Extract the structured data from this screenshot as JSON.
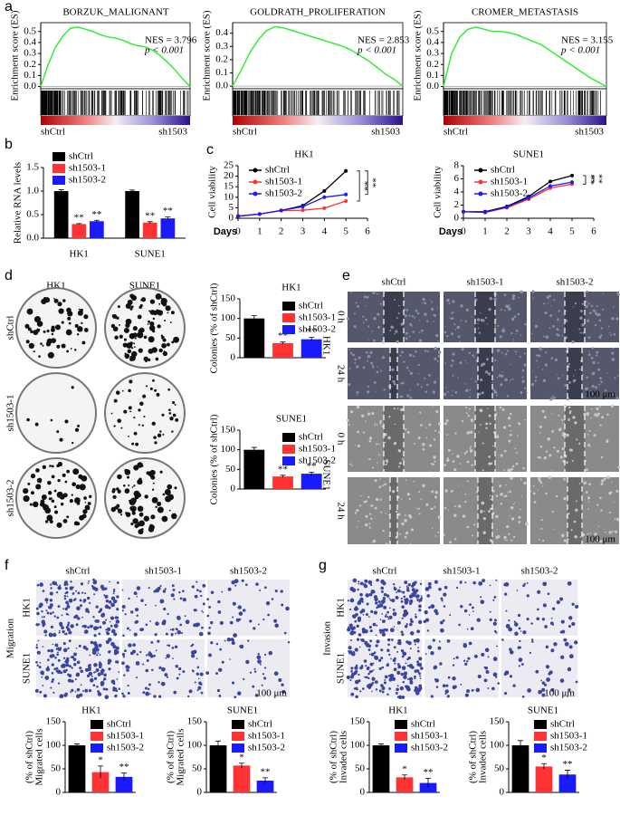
{
  "chart_data": [
    {
      "type": "line",
      "panel": "a",
      "title": "BORZUK_MALIGNANT",
      "ylabel": "Enrichment score (ES)",
      "color": "#33ee33",
      "x": [
        0,
        5,
        10,
        15,
        20,
        25,
        30,
        35,
        40,
        45,
        50,
        55,
        60,
        65,
        70,
        75,
        80,
        85,
        90,
        95,
        100
      ],
      "xlim": [
        0,
        100
      ],
      "values": [
        0,
        0.2,
        0.36,
        0.46,
        0.53,
        0.54,
        0.52,
        0.5,
        0.47,
        0.45,
        0.44,
        0.42,
        0.39,
        0.37,
        0.36,
        0.33,
        0.28,
        0.22,
        0.15,
        0.07,
        0
      ],
      "ylim": [
        -0.02,
        0.58
      ],
      "yticks": [
        {
          "value": 0,
          "label": "0.0"
        },
        0.1,
        0.2,
        0.3,
        0.4,
        0.5
      ],
      "nes": "NES = 3.796",
      "p": "p < 0.001",
      "left_label": "shCtrl",
      "right_label": "sh1503"
    },
    {
      "type": "line",
      "title": "GOLDRATH_PROLIFERATION",
      "ylabel": "Enrichment score (ES)",
      "color": "#33ee33",
      "x": [
        0,
        5,
        10,
        15,
        20,
        25,
        30,
        35,
        40,
        45,
        50,
        55,
        60,
        65,
        70,
        75,
        80,
        85,
        90,
        95,
        100
      ],
      "xlim": [
        0,
        100
      ],
      "values": [
        0,
        0.12,
        0.25,
        0.35,
        0.42,
        0.45,
        0.44,
        0.42,
        0.4,
        0.38,
        0.36,
        0.34,
        0.32,
        0.3,
        0.27,
        0.23,
        0.19,
        0.14,
        0.09,
        0.05,
        0
      ],
      "ylim": [
        -0.02,
        0.48
      ],
      "yticks": [
        {
          "value": 0,
          "label": "0.0"
        },
        0.1,
        0.2,
        0.3,
        0.4
      ],
      "nes": "NES = 2.853",
      "p": "p < 0.001",
      "left_label": "shCtrl",
      "right_label": "sh1503"
    },
    {
      "type": "line",
      "title": "CROMER_METASTASIS",
      "ylabel": "Enrichment score (ES)",
      "color": "#33ee33",
      "x": [
        0,
        5,
        10,
        15,
        20,
        25,
        30,
        35,
        40,
        45,
        50,
        55,
        60,
        65,
        70,
        75,
        80,
        85,
        90,
        95,
        100
      ],
      "xlim": [
        0,
        100
      ],
      "values": [
        0,
        0.3,
        0.45,
        0.52,
        0.54,
        0.52,
        0.5,
        0.5,
        0.49,
        0.47,
        0.44,
        0.41,
        0.38,
        0.33,
        0.28,
        0.23,
        0.18,
        0.13,
        0.08,
        0.04,
        0
      ],
      "ylim": [
        -0.02,
        0.58
      ],
      "yticks": [
        {
          "value": 0,
          "label": "0.0"
        },
        0.1,
        0.2,
        0.3,
        0.4,
        0.5
      ],
      "nes": "NES = 3.155",
      "p": "p < 0.001",
      "left_label": "shCtrl",
      "right_label": "sh1503"
    },
    {
      "type": "bar",
      "panel": "b",
      "ylabel": "Relative RNA levels",
      "categories": [
        "HK1",
        "SUNE1"
      ],
      "ylim": [
        0,
        1.5
      ],
      "yticks": [
        {
          "value": 0,
          "label": "0.0"
        },
        0.5,
        {
          "value": 1,
          "label": "1.0"
        },
        1.5
      ],
      "series": [
        {
          "name": "shCtrl",
          "color": "#000000",
          "values": [
            1.0,
            1.0
          ],
          "errors": [
            0.03,
            0.02
          ]
        },
        {
          "name": "sh1503-1",
          "color": "#ff3333",
          "values": [
            0.3,
            0.33
          ],
          "errors": [
            0.01,
            0.02
          ],
          "sig": [
            "**",
            "**"
          ]
        },
        {
          "name": "sh1503-2",
          "color": "#1a1aff",
          "values": [
            0.36,
            0.42
          ],
          "errors": [
            0.02,
            0.03
          ],
          "sig": [
            "**",
            "**"
          ]
        }
      ]
    },
    {
      "type": "line",
      "panel": "c",
      "title": "HK1",
      "ylabel": "Cell viability",
      "xlabel": "Days",
      "x": [
        0,
        1,
        2,
        3,
        4,
        5
      ],
      "xlim": [
        0,
        6
      ],
      "xticks": [
        0,
        1,
        2,
        3,
        4,
        5,
        6
      ],
      "ylim": [
        0,
        25
      ],
      "yticks": [
        0,
        5,
        10,
        15,
        20,
        25
      ],
      "series": [
        {
          "name": "shCtrl",
          "color": "#000000",
          "values": [
            1,
            2,
            3.7,
            6,
            13,
            22.5
          ]
        },
        {
          "name": "sh1503-1",
          "color": "#ff3333",
          "values": [
            1,
            2,
            3.6,
            3.8,
            4.8,
            8.2
          ],
          "sig": "**"
        },
        {
          "name": "sh1503-2",
          "color": "#1a1aff",
          "values": [
            1,
            2,
            3.7,
            5.5,
            10,
            11.3
          ],
          "sig": "**"
        }
      ]
    },
    {
      "type": "line",
      "title": "SUNE1",
      "ylabel": "Cell viability",
      "xlabel": "Days",
      "x": [
        0,
        1,
        2,
        3,
        4,
        5
      ],
      "xlim": [
        0,
        6
      ],
      "xticks": [
        0,
        1,
        2,
        3,
        4,
        5,
        6
      ],
      "ylim": [
        0,
        8
      ],
      "yticks": [
        0,
        2,
        4,
        6,
        8
      ],
      "series": [
        {
          "name": "shCtrl",
          "color": "#000000",
          "values": [
            1,
            1,
            1.8,
            3.3,
            5.6,
            6.5
          ]
        },
        {
          "name": "sh1503-1",
          "color": "#ff3333",
          "values": [
            1,
            0.9,
            1.6,
            2.9,
            4.6,
            5.2
          ],
          "sig": "**"
        },
        {
          "name": "sh1503-2",
          "color": "#1a1aff",
          "values": [
            1,
            0.9,
            1.7,
            3.1,
            4.9,
            5.5
          ],
          "sig": "**"
        }
      ]
    },
    {
      "type": "bar",
      "title": "HK1",
      "ylabel": [
        "Colonies (% of shCtrl)"
      ],
      "ylim": [
        0,
        150
      ],
      "yticks": [
        0,
        50,
        100,
        150
      ],
      "series": [
        {
          "name": "shCtrl",
          "color": "#000000",
          "values": [
            100
          ],
          "errors": [
            7
          ]
        },
        {
          "name": "sh1503-1",
          "color": "#ff3333",
          "values": [
            37
          ],
          "errors": [
            3
          ],
          "sig": [
            "**"
          ]
        },
        {
          "name": "sh1503-2",
          "color": "#1a1aff",
          "values": [
            47
          ],
          "errors": [
            5
          ],
          "sig": [
            "**"
          ]
        }
      ]
    },
    {
      "type": "bar",
      "title": "SUNE1",
      "ylabel": [
        "Colonies (% of shCtrl)"
      ],
      "ylim": [
        0,
        150
      ],
      "yticks": [
        0,
        50,
        100,
        150
      ],
      "series": [
        {
          "name": "shCtrl",
          "color": "#000000",
          "values": [
            100
          ],
          "errors": [
            6
          ]
        },
        {
          "name": "sh1503-1",
          "color": "#ff3333",
          "values": [
            32
          ],
          "errors": [
            3
          ],
          "sig": [
            "**"
          ]
        },
        {
          "name": "sh1503-2",
          "color": "#1a1aff",
          "values": [
            39
          ],
          "errors": [
            4
          ],
          "sig": [
            "**"
          ]
        }
      ]
    },
    {
      "type": "bar",
      "title": "HK1",
      "ylabel": [
        "Migrated cells",
        "(% of shCtrl)"
      ],
      "ylim": [
        0,
        150
      ],
      "yticks": [
        0,
        50,
        100,
        150
      ],
      "series": [
        {
          "name": "shCtrl",
          "color": "#000000",
          "values": [
            100
          ],
          "errors": [
            3
          ]
        },
        {
          "name": "sh1503-1",
          "color": "#ff3333",
          "values": [
            43
          ],
          "errors": [
            13
          ],
          "sig": [
            "*"
          ]
        },
        {
          "name": "sh1503-2",
          "color": "#1a1aff",
          "values": [
            33
          ],
          "errors": [
            8
          ],
          "sig": [
            "**"
          ]
        }
      ]
    },
    {
      "type": "bar",
      "title": "SUNE1",
      "ylabel": [
        "Migrated cells",
        "(% of shCtrl)"
      ],
      "ylim": [
        0,
        150
      ],
      "yticks": [
        0,
        50,
        100,
        150
      ],
      "series": [
        {
          "name": "shCtrl",
          "color": "#000000",
          "values": [
            100
          ],
          "errors": [
            9
          ]
        },
        {
          "name": "sh1503-1",
          "color": "#ff3333",
          "values": [
            57
          ],
          "errors": [
            5
          ],
          "sig": [
            "*"
          ]
        },
        {
          "name": "sh1503-2",
          "color": "#1a1aff",
          "values": [
            25
          ],
          "errors": [
            6
          ],
          "sig": [
            "**"
          ]
        }
      ]
    },
    {
      "type": "bar",
      "title": "HK1",
      "ylabel": [
        "Invaded cells",
        "(% of shCtrl)"
      ],
      "ylim": [
        0,
        150
      ],
      "yticks": [
        0,
        50,
        100,
        150
      ],
      "series": [
        {
          "name": "shCtrl",
          "color": "#000000",
          "values": [
            100
          ],
          "errors": [
            3
          ]
        },
        {
          "name": "sh1503-1",
          "color": "#ff3333",
          "values": [
            32
          ],
          "errors": [
            5
          ],
          "sig": [
            "*"
          ]
        },
        {
          "name": "sh1503-2",
          "color": "#1a1aff",
          "values": [
            20
          ],
          "errors": [
            10
          ],
          "sig": [
            "**"
          ]
        }
      ]
    },
    {
      "type": "bar",
      "title": "SUNE1",
      "ylabel": [
        "Invaded cells",
        "(% of shCtrl)"
      ],
      "ylim": [
        0,
        150
      ],
      "yticks": [
        0,
        50,
        100,
        150
      ],
      "series": [
        {
          "name": "shCtrl",
          "color": "#000000",
          "values": [
            100
          ],
          "errors": [
            10
          ]
        },
        {
          "name": "sh1503-1",
          "color": "#ff3333",
          "values": [
            55
          ],
          "errors": [
            6
          ],
          "sig": [
            "*"
          ]
        },
        {
          "name": "sh1503-2",
          "color": "#1a1aff",
          "values": [
            38
          ],
          "errors": [
            9
          ],
          "sig": [
            "**"
          ]
        }
      ]
    }
  ],
  "image_panels": {
    "d": {
      "label": "d",
      "columns": [
        "HK1",
        "SUNE1"
      ],
      "rows": [
        "shCtrl",
        "sh1503-1",
        "sh1503-2"
      ]
    },
    "e": {
      "label": "e",
      "columns": [
        "shCtrl",
        "sh1503-1",
        "sh1503-2"
      ],
      "groups": [
        {
          "name": "HK1",
          "rows": [
            "0 h",
            "24 h"
          ]
        },
        {
          "name": "SUNE1",
          "rows": [
            "0 h",
            "24 h"
          ]
        }
      ],
      "scale_bar": "100 μm"
    },
    "f": {
      "label": "f",
      "side_label": "Migration",
      "columns": [
        "shCtrl",
        "sh1503-1",
        "sh1503-2"
      ],
      "rows": [
        "HK1",
        "SUNE1"
      ],
      "scale_bar": "100 μm"
    },
    "g": {
      "label": "g",
      "side_label": "Invasion",
      "columns": [
        "shCtrl",
        "sh1503-1",
        "sh1503-2"
      ],
      "rows": [
        "HK1",
        "SUNE1"
      ],
      "scale_bar": "100 μm"
    }
  }
}
